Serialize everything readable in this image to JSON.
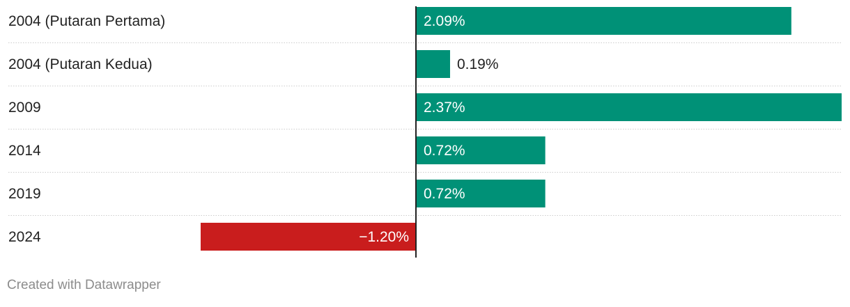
{
  "chart_data": {
    "type": "bar",
    "orientation": "horizontal",
    "categories": [
      "2004 (Putaran Pertama)",
      "2004 (Putaran Kedua)",
      "2009",
      "2014",
      "2019",
      "2024"
    ],
    "values": [
      2.09,
      0.19,
      2.37,
      0.72,
      0.72,
      -1.2
    ],
    "value_labels": [
      "2.09%",
      "0.19%",
      "2.37%",
      "0.72%",
      "0.72%",
      "−1.20%"
    ],
    "xlim": [
      -1.2,
      2.37
    ],
    "colors": {
      "positive": "#009177",
      "negative": "#c91d1d"
    },
    "grid": true
  },
  "footer": {
    "credit": "Created with Datawrapper"
  }
}
